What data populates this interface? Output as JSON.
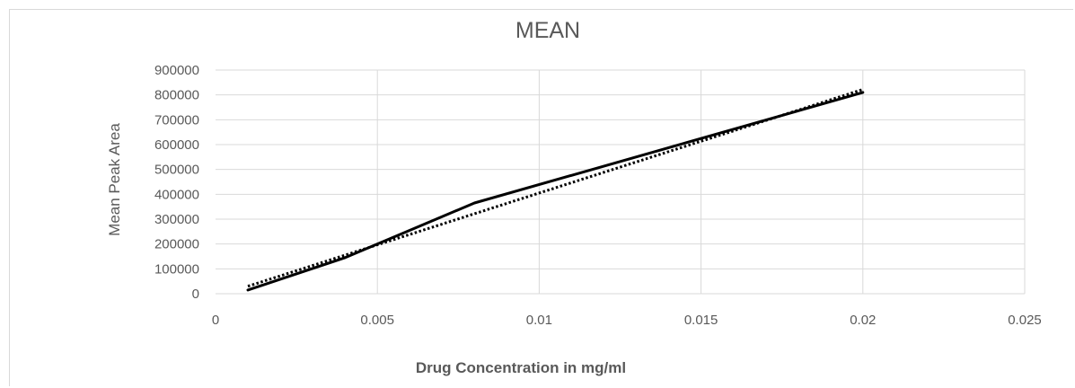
{
  "chart_data": {
    "type": "line",
    "title": "MEAN",
    "xlabel": "Drug Concentration in mg/ml",
    "ylabel": "Mean Peak Area",
    "xlim": [
      0,
      0.025
    ],
    "ylim": [
      0,
      900000
    ],
    "x_ticks": [
      "0",
      "0.005",
      "0.01",
      "0.015",
      "0.02",
      "0.025"
    ],
    "y_ticks": [
      "0",
      "100000",
      "200000",
      "300000",
      "400000",
      "500000",
      "600000",
      "700000",
      "800000",
      "900000"
    ],
    "x_tick_values": [
      0,
      0.005,
      0.01,
      0.015,
      0.02,
      0.025
    ],
    "y_tick_values": [
      0,
      100000,
      200000,
      300000,
      400000,
      500000,
      600000,
      700000,
      800000,
      900000
    ],
    "grid": true,
    "series": [
      {
        "style": "solid",
        "color": "#000000",
        "x": [
          0.001,
          0.004,
          0.008,
          0.02
        ],
        "y": [
          15000,
          145000,
          365000,
          810000
        ]
      },
      {
        "style": "dotted",
        "trendline": "linear",
        "color": "#000000",
        "x": [
          0.001,
          0.02
        ],
        "y": [
          30000,
          822000
        ]
      }
    ]
  }
}
